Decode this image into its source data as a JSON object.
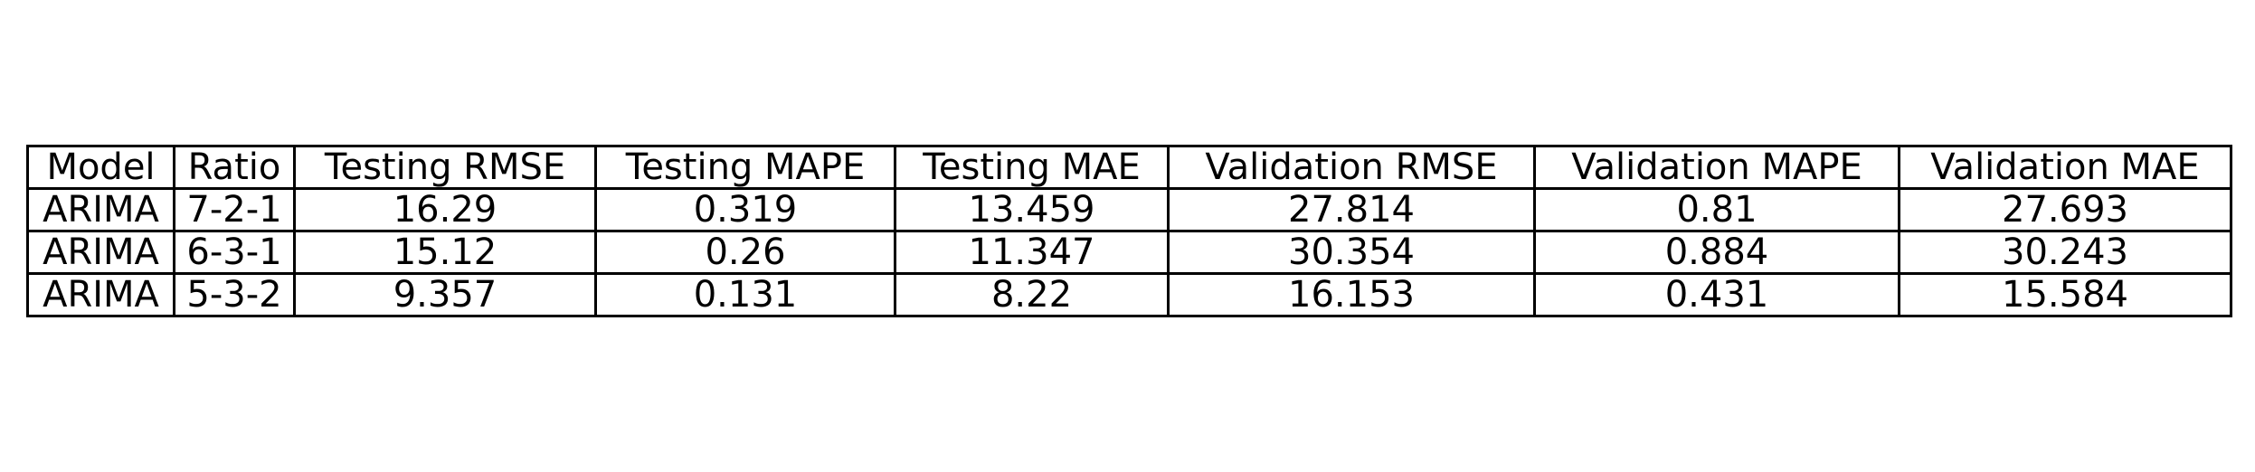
{
  "chart_data": {
    "type": "table",
    "columns": [
      "Model",
      "Ratio",
      "Testing RMSE",
      "Testing MAPE",
      "Testing MAE",
      "Validation RMSE",
      "Validation MAPE",
      "Validation MAE"
    ],
    "rows": [
      [
        "ARIMA",
        "7-2-1",
        "16.29",
        "0.319",
        "13.459",
        "27.814",
        "0.81",
        "27.693"
      ],
      [
        "ARIMA",
        "6-3-1",
        "15.12",
        "0.26",
        "11.347",
        "30.354",
        "0.884",
        "30.243"
      ],
      [
        "ARIMA",
        "5-3-2",
        "9.357",
        "0.131",
        "8.22",
        "16.153",
        "0.431",
        "15.584"
      ]
    ]
  }
}
